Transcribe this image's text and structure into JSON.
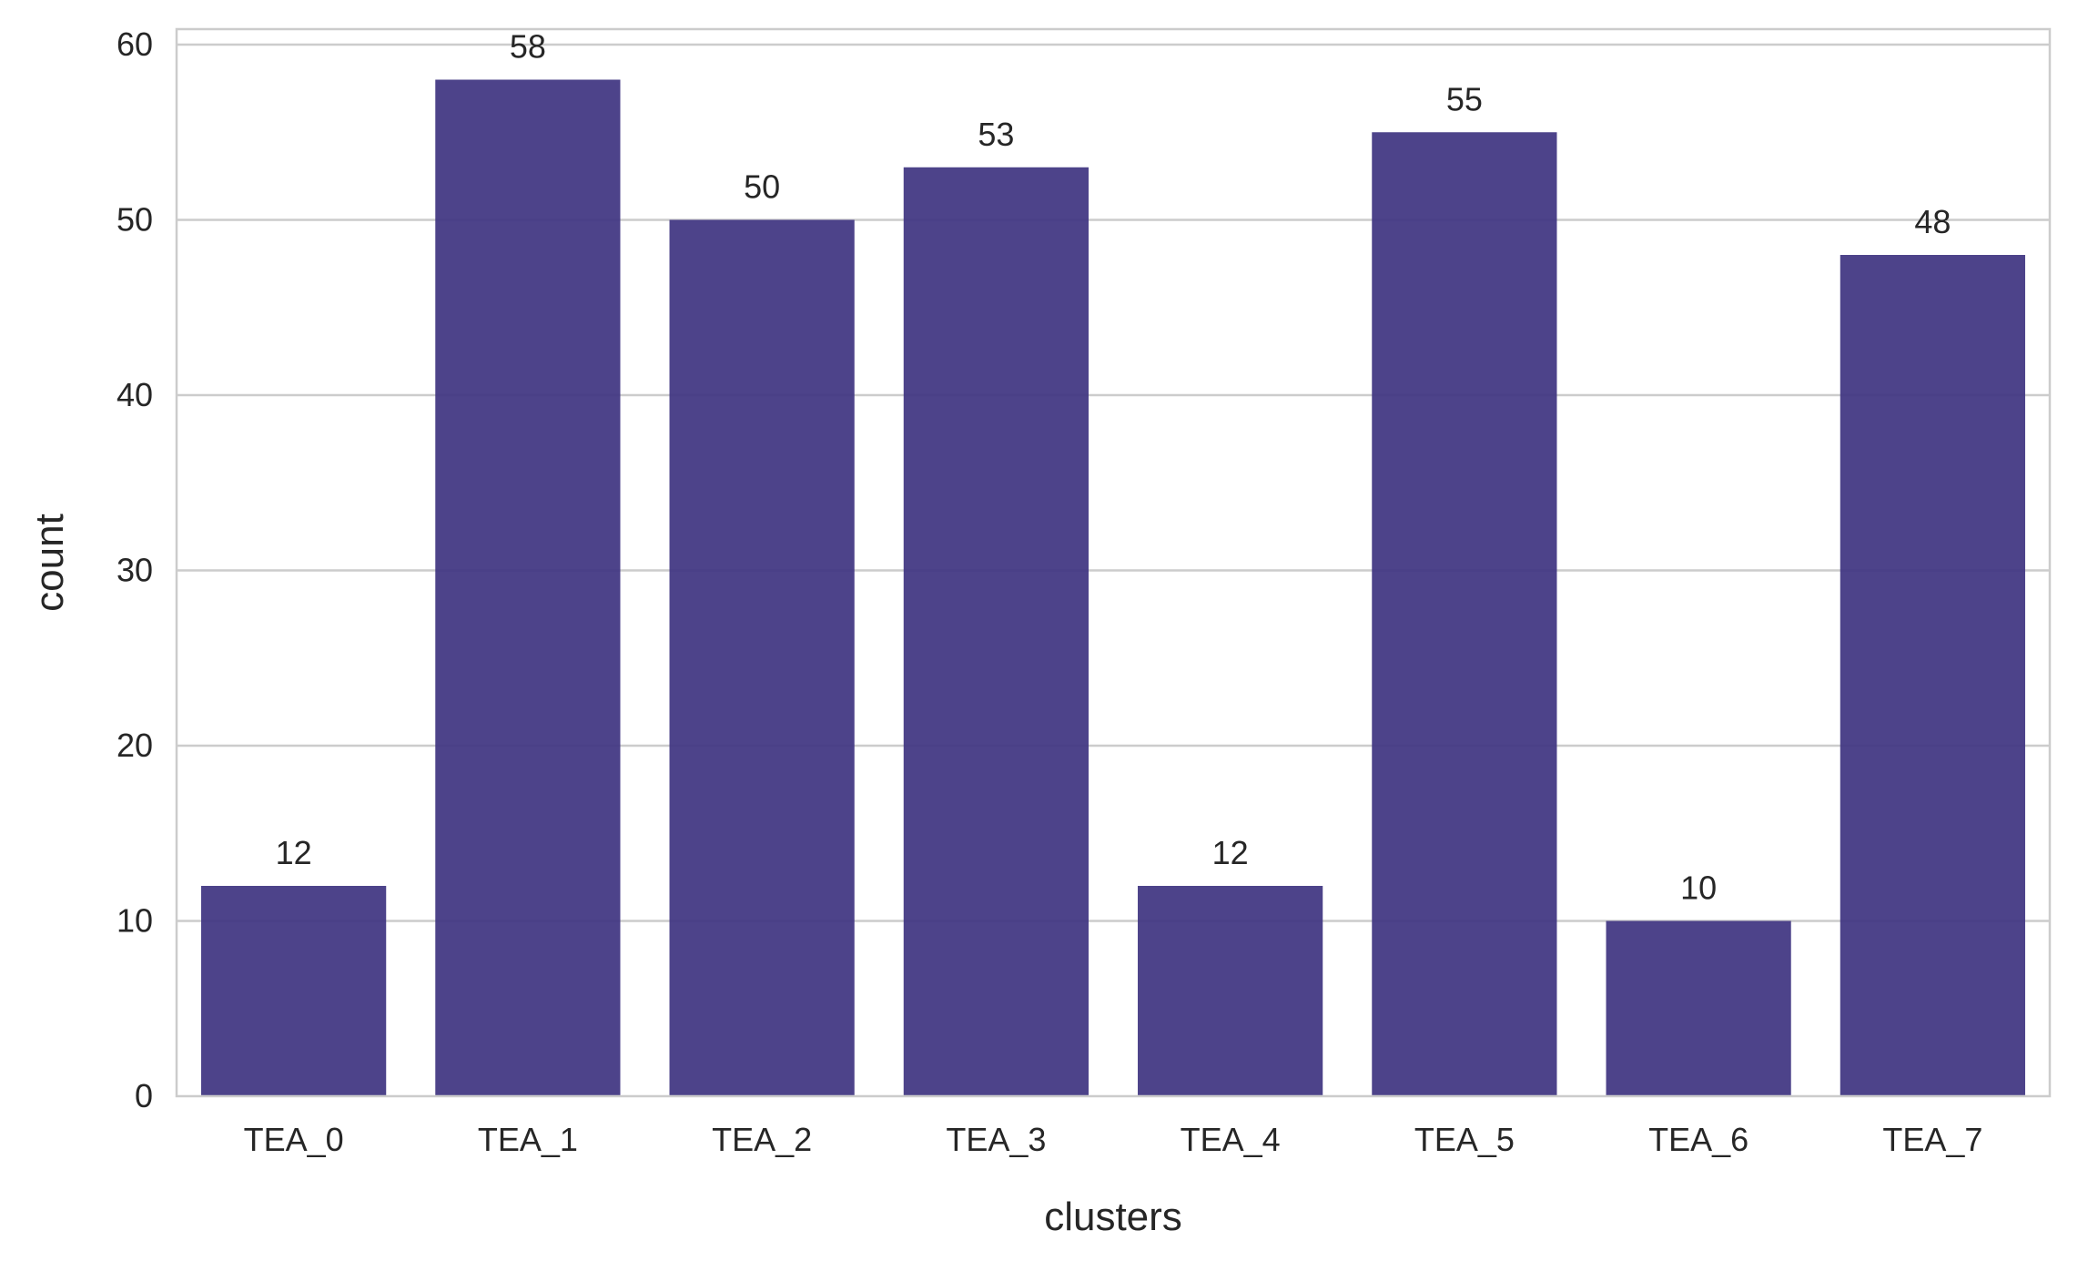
{
  "chart_data": {
    "type": "bar",
    "categories": [
      "TEA_0",
      "TEA_1",
      "TEA_2",
      "TEA_3",
      "TEA_4",
      "TEA_5",
      "TEA_6",
      "TEA_7"
    ],
    "values": [
      12,
      58,
      50,
      53,
      12,
      55,
      10,
      48
    ],
    "data_labels": [
      "12",
      "58",
      "50",
      "53",
      "12",
      "55",
      "10",
      "48"
    ],
    "title": "",
    "xlabel": "clusters",
    "ylabel": "count",
    "ylim": [
      0,
      60
    ],
    "yticks": [
      "0",
      "10",
      "20",
      "30",
      "40",
      "50",
      "60"
    ],
    "grid": "horizontal",
    "bar_color": "#3f3581",
    "grid_color": "#cccccc",
    "text_color": "#262626"
  }
}
